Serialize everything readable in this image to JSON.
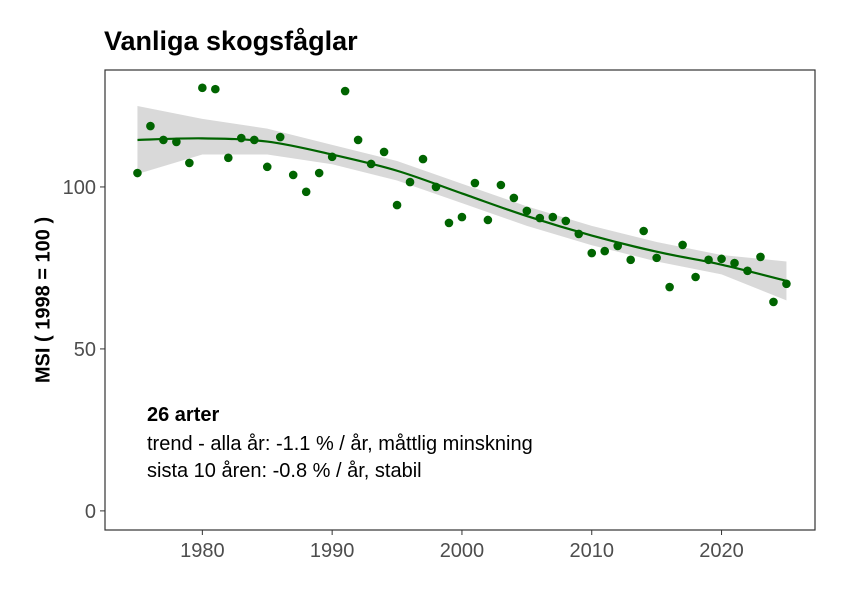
{
  "chart_data": {
    "type": "scatter",
    "title": "Vanliga skogsfåglar",
    "xlabel": "",
    "ylabel": "MSI ( 1998 = 100 )",
    "xlim": [
      1972.5,
      2027.2
    ],
    "ylim": [
      -5.9,
      136.1
    ],
    "xticks": [
      1980,
      1990,
      2000,
      2010,
      2020
    ],
    "yticks": [
      0,
      50,
      100
    ],
    "grid": false,
    "colors": {
      "points": "#006400",
      "trend": "#006400",
      "band": "#d9d9d9"
    },
    "x": [
      1975,
      1976,
      1977,
      1978,
      1979,
      1980,
      1981,
      1982,
      1983,
      1984,
      1985,
      1986,
      1987,
      1988,
      1989,
      1990,
      1991,
      1992,
      1993,
      1994,
      1995,
      1996,
      1997,
      1998,
      1999,
      2000,
      2001,
      2002,
      2003,
      2004,
      2005,
      2006,
      2007,
      2008,
      2009,
      2010,
      2011,
      2012,
      2013,
      2014,
      2015,
      2016,
      2017,
      2018,
      2019,
      2020,
      2021,
      2022,
      2023,
      2024,
      2025
    ],
    "y": [
      104.3,
      118.8,
      114.5,
      113.9,
      107.4,
      130.6,
      130.2,
      109.0,
      115.1,
      114.5,
      106.2,
      115.4,
      103.7,
      98.5,
      104.3,
      109.3,
      129.6,
      114.5,
      107.1,
      110.8,
      94.4,
      101.5,
      108.6,
      100,
      88.9,
      90.7,
      101.2,
      89.8,
      100.6,
      96.6,
      92.6,
      90.4,
      90.7,
      89.5,
      85.5,
      79.6,
      80.2,
      81.8,
      77.5,
      86.4,
      78.1,
      69.1,
      82.1,
      72.2,
      77.5,
      77.8,
      76.5,
      74.1,
      78.4,
      64.5,
      70.1
    ],
    "trend": {
      "x": [
        1975,
        1980,
        1985,
        1990,
        1995,
        2000,
        2005,
        2010,
        2015,
        2020,
        2025
      ],
      "fit": [
        114.5,
        115,
        114,
        110,
        105,
        98,
        91,
        85,
        80,
        76,
        71
      ],
      "lower": [
        104,
        110,
        110,
        107,
        102,
        95,
        88,
        82,
        77,
        73,
        65
      ],
      "upper": [
        125,
        121,
        118,
        113,
        108,
        101,
        94,
        88,
        83,
        79,
        77
      ]
    },
    "annotations": {
      "species": "26 arter",
      "trend_all": "trend - alla år: -1.1 % / år, måttlig minskning",
      "trend_10": "sista 10 åren: -0.8 % / år, stabil"
    }
  }
}
